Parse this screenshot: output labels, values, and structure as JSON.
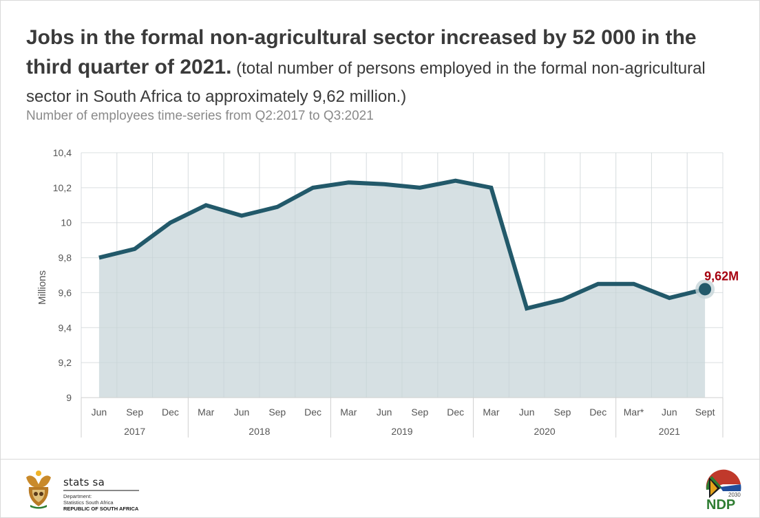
{
  "headline": {
    "bold": "Jobs in the formal non-agricultural sector increased by 52 000 in the third quarter of 2021.",
    "normal": " (total number of persons employed in the formal non-agricultural sector in South Africa to approximately 9,62 million.)"
  },
  "subtitle": "Number of employees time-series from Q2:2017 to Q3:2021",
  "colors": {
    "line": "#22596a",
    "area": "#d1dde0",
    "highlight_label": "#a6000f",
    "grid": "#ececec",
    "text": "#3a3a3a",
    "axis_text": "#555555"
  },
  "chart_data": {
    "type": "area",
    "title": "Number of employees time-series from Q2:2017 to Q3:2021",
    "xlabel": "",
    "ylabel": "Millions",
    "ylim": [
      9,
      10.4
    ],
    "yticks": [
      9,
      9.2,
      9.4,
      9.6,
      9.8,
      10,
      10.2,
      10.4
    ],
    "ytick_labels": [
      "9",
      "9,2",
      "9,4",
      "9,6",
      "9,8",
      "10",
      "10,2",
      "10,4"
    ],
    "grid": true,
    "categories": [
      "Jun",
      "Sep",
      "Dec",
      "Mar",
      "Jun",
      "Sep",
      "Dec",
      "Mar",
      "Jun",
      "Sep",
      "Dec",
      "Mar",
      "Jun",
      "Sep",
      "Dec",
      "Mar*",
      "Jun",
      "Sept"
    ],
    "year_groups": [
      {
        "label": "2017",
        "count": 3
      },
      {
        "label": "2018",
        "count": 4
      },
      {
        "label": "2019",
        "count": 4
      },
      {
        "label": "2020",
        "count": 4
      },
      {
        "label": "2021",
        "count": 3
      }
    ],
    "series": [
      {
        "name": "Number of employees (millions)",
        "values": [
          9.8,
          9.85,
          10.0,
          10.1,
          10.04,
          10.09,
          10.2,
          10.23,
          10.22,
          10.2,
          10.24,
          10.2,
          9.51,
          9.56,
          9.65,
          9.65,
          9.57,
          9.62
        ]
      }
    ],
    "annotations": [
      {
        "index": 17,
        "text": "9,62M",
        "value": 9.62
      }
    ]
  },
  "footer": {
    "org_name": "stats sa",
    "dept_line1": "Department:",
    "dept_line2": "Statistics South Africa",
    "country": "REPUBLIC OF SOUTH AFRICA",
    "ndp_year": "2030",
    "ndp_label": "NDP"
  }
}
